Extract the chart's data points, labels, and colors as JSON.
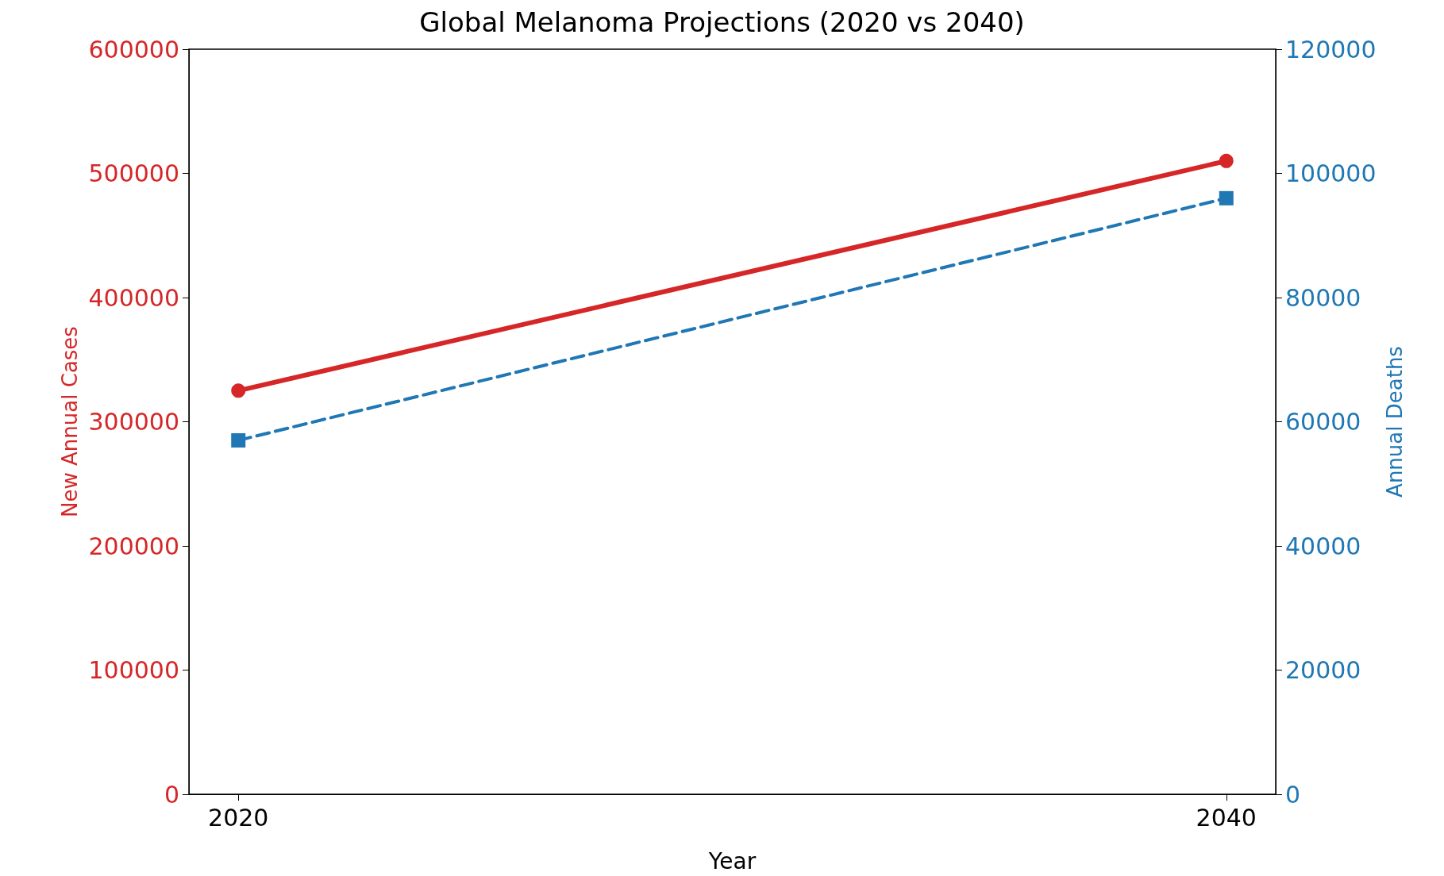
{
  "chart_data": {
    "type": "line",
    "title": "Global Melanoma Projections (2020 vs 2040)",
    "xlabel": "Year",
    "ylabel": "New Annual Cases",
    "y2label": "Annual Deaths",
    "x": [
      2020,
      2040
    ],
    "xlim": [
      2019,
      2041
    ],
    "xticks": [
      2020,
      2040
    ],
    "ylim": [
      0,
      600000
    ],
    "yticks": [
      0,
      100000,
      200000,
      300000,
      400000,
      500000,
      600000
    ],
    "y2lim": [
      0,
      120000
    ],
    "y2ticks": [
      0,
      20000,
      40000,
      60000,
      80000,
      100000,
      120000
    ],
    "grid": false,
    "series": [
      {
        "color": "#d62728",
        "values": [
          325000,
          510000
        ],
        "marker": "circle",
        "line_style": "solid"
      },
      {
        "color": "#1f77b4",
        "values": [
          57000,
          96000
        ],
        "axis": "y2",
        "marker": "square",
        "line_style": "dashed"
      }
    ]
  }
}
